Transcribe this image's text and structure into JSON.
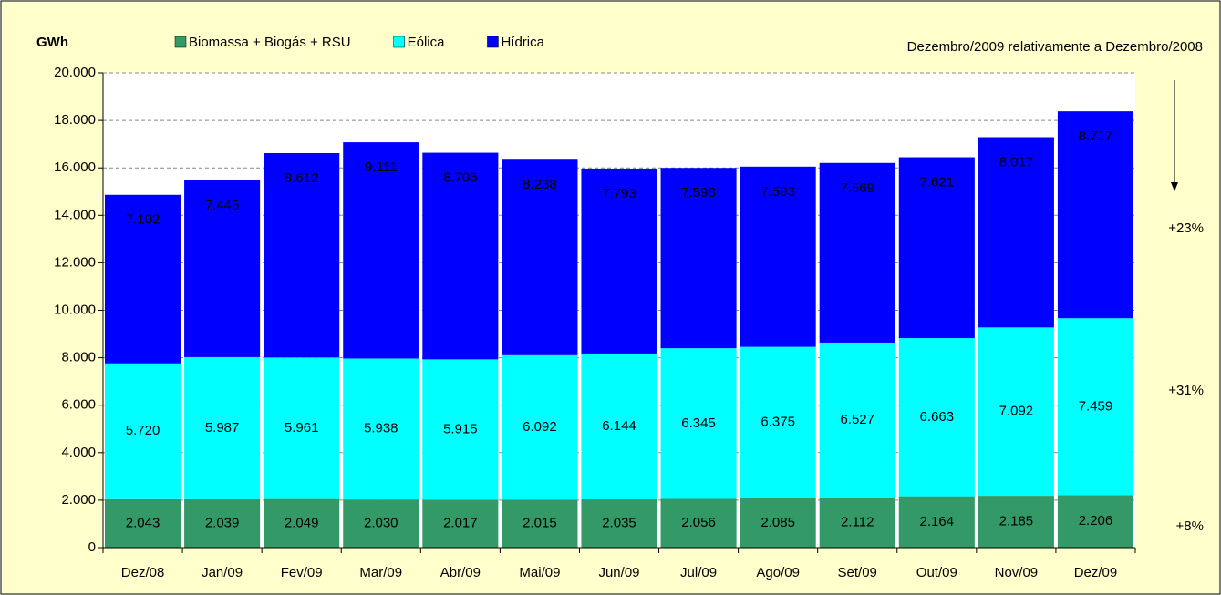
{
  "chart_data": {
    "type": "stacked_bar",
    "y_label": "GWh",
    "annotations": [
      "Dezembro/2009 relativamente a Dezembro/2008",
      "+23%",
      "+31%",
      "+8%"
    ],
    "categories": [
      "Dez/08",
      "Jan/09",
      "Fev/09",
      "Mar/09",
      "Abr/09",
      "Mai/09",
      "Jun/09",
      "Jul/09",
      "Ago/09",
      "Set/09",
      "Out/09",
      "Nov/09",
      "Dez/09"
    ],
    "series": [
      {
        "name": "Biomassa + Biogás + RSU",
        "color": "#339966",
        "label_color": "#ffffff",
        "values": [
          2043,
          2039,
          2049,
          2030,
          2017,
          2015,
          2035,
          2056,
          2085,
          2112,
          2164,
          2185,
          2206
        ],
        "value_labels": [
          "2.043",
          "2.039",
          "2.049",
          "2.030",
          "2.017",
          "2.015",
          "2.035",
          "2.056",
          "2.085",
          "2.112",
          "2.164",
          "2.185",
          "2.206"
        ]
      },
      {
        "name": "Eólica",
        "color": "#00ffff",
        "label_color": "#000000",
        "values": [
          5720,
          5987,
          5961,
          5938,
          5915,
          6092,
          6144,
          6345,
          6375,
          6527,
          6663,
          7092,
          7459
        ],
        "value_labels": [
          "5.720",
          "5.987",
          "5.961",
          "5.938",
          "5.915",
          "6.092",
          "6.144",
          "6.345",
          "6.375",
          "6.527",
          "6.663",
          "7.092",
          "7.459"
        ]
      },
      {
        "name": "Hídrica",
        "color": "#0000ff",
        "label_color": "#ffffff",
        "values": [
          7102,
          7445,
          8612,
          9111,
          8706,
          8238,
          7793,
          7598,
          7593,
          7569,
          7621,
          8017,
          8717
        ],
        "value_labels": [
          "7.102",
          "7.445",
          "8.612",
          "9.111",
          "8.706",
          "8.238",
          "7.793",
          "7.598",
          "7.593",
          "7.569",
          "7.621",
          "8.017",
          "8.717"
        ]
      }
    ],
    "ylim": [
      0,
      20000
    ],
    "yticks": [
      0,
      {
        "value": 2000,
        "label": "2.000"
      },
      {
        "value": 4000,
        "label": "4.000"
      },
      {
        "value": 6000,
        "label": "6.000"
      },
      {
        "value": 8000,
        "label": "8.000"
      },
      {
        "value": 10000,
        "label": "10.000"
      },
      {
        "value": 12000,
        "label": "12.000"
      },
      {
        "value": 14000,
        "label": "14.000"
      },
      {
        "value": 16000,
        "label": "16.000"
      },
      {
        "value": 18000,
        "label": "18.000"
      },
      {
        "value": 20000,
        "label": "20.000"
      }
    ],
    "grid": true
  }
}
